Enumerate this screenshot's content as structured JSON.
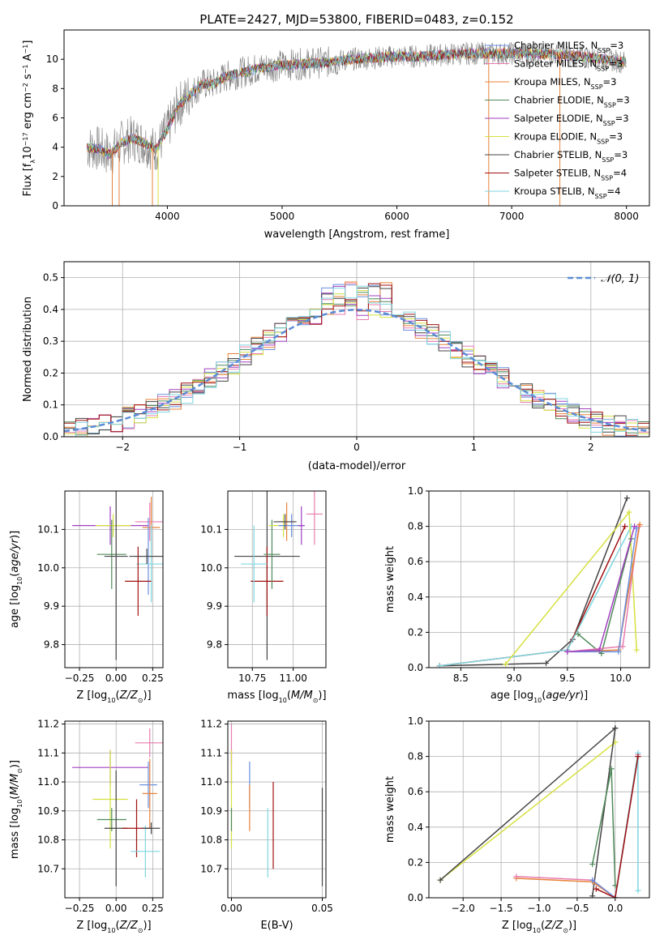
{
  "figure_title": "PLATE=2427, MJD=53800, FIBERID=0483, z=0.152",
  "colors": {
    "chabrier_miles": "#6a8fe0",
    "salpeter_miles": "#e87cb0",
    "kroupa_miles": "#e8823a",
    "chabrier_elodie": "#4f8a5a",
    "salpeter_elodie": "#a040c0",
    "kroupa_elodie": "#d6e040",
    "chabrier_stelib": "#444444",
    "salpeter_stelib": "#a01010",
    "kroupa_stelib": "#7fd6e0",
    "data_gray": "#808080",
    "normal_curve": "#5b8bd6",
    "grid": "#b0b0b0"
  },
  "chart_data": [
    {
      "id": "spectrum",
      "type": "line",
      "xlabel": "wavelength [Angstrom, rest frame]",
      "ylabel": "Flux [f_λ10^-17 erg cm^-2 s^-1 A^-1]",
      "xlim": [
        3100,
        8200
      ],
      "ylim": [
        0,
        12
      ],
      "xticks": [
        4000,
        5000,
        6000,
        7000,
        8000
      ],
      "yticks": [
        0,
        2,
        4,
        6,
        8,
        10
      ],
      "grid": false,
      "legend_position": "upper-right",
      "legend": [
        {
          "label": "Chabrier MILES, N",
          "sub": "SSP",
          "eq": "=3",
          "color_key": "chabrier_miles"
        },
        {
          "label": "Salpeter MILES, N",
          "sub": "SSP",
          "eq": "=3",
          "color_key": "salpeter_miles"
        },
        {
          "label": "Kroupa MILES, N",
          "sub": "SSP",
          "eq": "=3",
          "color_key": "kroupa_miles"
        },
        {
          "label": "Chabrier ELODIE, N",
          "sub": "SSP",
          "eq": "=3",
          "color_key": "chabrier_elodie"
        },
        {
          "label": "Salpeter ELODIE, N",
          "sub": "SSP",
          "eq": "=3",
          "color_key": "salpeter_elodie"
        },
        {
          "label": "Kroupa ELODIE, N",
          "sub": "SSP",
          "eq": "=3",
          "color_key": "kroupa_elodie"
        },
        {
          "label": "Chabrier STELIB, N",
          "sub": "SSP",
          "eq": "=3",
          "color_key": "chabrier_stelib"
        },
        {
          "label": "Salpeter STELIB, N",
          "sub": "SSP",
          "eq": "=4",
          "color_key": "salpeter_stelib"
        },
        {
          "label": "Kroupa STELIB, N",
          "sub": "SSP",
          "eq": "=4",
          "color_key": "kroupa_stelib"
        }
      ],
      "continuum": {
        "x": [
          3300,
          3400,
          3500,
          3600,
          3700,
          3800,
          3900,
          4000,
          4100,
          4200,
          4300,
          4400,
          4500,
          4600,
          4800,
          5000,
          5200,
          5400,
          5600,
          5800,
          6000,
          6200,
          6400,
          6600,
          6800,
          7000,
          7200,
          7400,
          7600,
          7800,
          8000
        ],
        "y": [
          4.0,
          3.9,
          3.5,
          4.3,
          4.6,
          4.3,
          3.8,
          5.2,
          6.9,
          7.6,
          8.3,
          8.3,
          8.8,
          9.0,
          9.4,
          9.6,
          9.7,
          9.8,
          10.0,
          10.1,
          10.2,
          10.2,
          10.3,
          10.4,
          10.4,
          10.4,
          10.4,
          10.3,
          10.2,
          10.0,
          9.8
        ]
      }
    },
    {
      "id": "residuals",
      "type": "histogram",
      "xlabel": "(data-model)/error",
      "ylabel": "Normed distribution",
      "xlim": [
        -2.5,
        2.5
      ],
      "ylim": [
        0,
        0.55
      ],
      "xticks": [
        -2,
        -1,
        0,
        1,
        2
      ],
      "yticks": [
        0.0,
        0.1,
        0.2,
        0.3,
        0.4,
        0.5
      ],
      "grid": true,
      "legend_position": "upper-right",
      "normal_label": "𝒩(0, 1)",
      "bin_width": 0.1
    },
    {
      "id": "age_vs_Z",
      "type": "errorbar",
      "xlabel": "Z [log10(Z/Z⊙)]",
      "ylabel": "age [log10(age/yr)]",
      "xlim": [
        -0.35,
        0.32
      ],
      "ylim": [
        9.74,
        10.2
      ],
      "xticks": [
        -0.25,
        0.0,
        0.25
      ],
      "yticks": [
        9.8,
        9.9,
        10.0,
        10.1
      ],
      "grid": true,
      "points": [
        {
          "x": -0.04,
          "y": 10.11,
          "xerr": 0.26,
          "yerr": 0.05,
          "color_key": "salpeter_elodie"
        },
        {
          "x": -0.02,
          "y": 10.11,
          "xerr": 0.12,
          "yerr": 0.03,
          "color_key": "kroupa_elodie"
        },
        {
          "x": -0.03,
          "y": 10.035,
          "xerr": 0.1,
          "yerr": 0.09,
          "color_key": "chabrier_elodie"
        },
        {
          "x": 0.0,
          "y": 10.03,
          "xerr": 0.08,
          "yerr": 0.27,
          "color_key": "chabrier_stelib"
        },
        {
          "x": 0.23,
          "y": 10.12,
          "xerr": 0.1,
          "yerr": 0.05,
          "color_key": "salpeter_miles"
        },
        {
          "x": 0.24,
          "y": 10.105,
          "xerr": 0.06,
          "yerr": 0.08,
          "color_key": "kroupa_miles"
        },
        {
          "x": 0.22,
          "y": 10.03,
          "xerr": 0.1,
          "yerr": 0.1,
          "color_key": "chabrier_miles"
        },
        {
          "x": 0.24,
          "y": 10.01,
          "xerr": 0.1,
          "yerr": 0.1,
          "color_key": "kroupa_stelib"
        },
        {
          "x": 0.15,
          "y": 9.965,
          "xerr": 0.09,
          "yerr": 0.09,
          "color_key": "salpeter_stelib"
        },
        {
          "x": 0.21,
          "y": 10.03,
          "xerr": 0.12,
          "yerr": 0.02,
          "color_key": "chabrier_stelib"
        }
      ]
    },
    {
      "id": "age_vs_mass",
      "type": "errorbar",
      "xlabel": "mass [log10(M/M⊙)]",
      "ylabel": "",
      "xlim": [
        10.6,
        11.2
      ],
      "ylim": [
        9.74,
        10.2
      ],
      "xticks": [
        10.75,
        11.0
      ],
      "yticks": [
        9.8,
        9.9,
        10.0,
        10.1
      ],
      "grid": true,
      "points": [
        {
          "x": 10.84,
          "y": 10.03,
          "xerr": 0.2,
          "yerr": 0.27,
          "color_key": "chabrier_stelib"
        },
        {
          "x": 10.84,
          "y": 9.965,
          "xerr": 0.1,
          "yerr": 0.09,
          "color_key": "salpeter_stelib"
        },
        {
          "x": 10.76,
          "y": 10.01,
          "xerr": 0.08,
          "yerr": 0.1,
          "color_key": "kroupa_stelib"
        },
        {
          "x": 10.87,
          "y": 10.035,
          "xerr": 0.05,
          "yerr": 0.09,
          "color_key": "chabrier_elodie"
        },
        {
          "x": 10.94,
          "y": 10.11,
          "xerr": 0.09,
          "yerr": 0.03,
          "color_key": "kroupa_elodie"
        },
        {
          "x": 10.96,
          "y": 10.12,
          "xerr": 0.05,
          "yerr": 0.05,
          "color_key": "kroupa_miles"
        },
        {
          "x": 10.99,
          "y": 10.11,
          "xerr": 0.08,
          "yerr": 0.03,
          "color_key": "chabrier_miles"
        },
        {
          "x": 11.05,
          "y": 10.11,
          "xerr": 0.02,
          "yerr": 0.05,
          "color_key": "salpeter_elodie"
        },
        {
          "x": 11.13,
          "y": 10.14,
          "xerr": 0.05,
          "yerr": 0.08,
          "color_key": "salpeter_miles"
        },
        {
          "x": 10.95,
          "y": 10.12,
          "xerr": 0.07,
          "yerr": 0.02,
          "color_key": "chabrier_stelib"
        }
      ]
    },
    {
      "id": "weight_vs_age",
      "type": "line",
      "xlabel": "age [log10(age/yr)]",
      "ylabel": "mass weight",
      "xlim": [
        8.2,
        10.27
      ],
      "ylim": [
        0,
        1
      ],
      "xticks": [
        8.5,
        9.0,
        9.5,
        10.0
      ],
      "yticks": [
        0.0,
        0.2,
        0.4,
        0.6,
        0.8,
        1.0
      ],
      "grid": true,
      "series": [
        {
          "color_key": "chabrier_stelib",
          "x": [
            8.3,
            9.3,
            9.55,
            10.06
          ],
          "y": [
            0.01,
            0.025,
            0.16,
            0.96
          ]
        },
        {
          "color_key": "salpeter_stelib",
          "x": [
            8.3,
            9.5,
            10.04
          ],
          "y": [
            0.01,
            0.1,
            0.8
          ]
        },
        {
          "color_key": "kroupa_stelib",
          "x": [
            8.3,
            9.5,
            10.1
          ],
          "y": [
            0.01,
            0.1,
            0.8
          ]
        },
        {
          "color_key": "kroupa_elodie",
          "x": [
            8.92,
            10.08,
            10.15
          ],
          "y": [
            0.02,
            0.88,
            0.1
          ]
        },
        {
          "color_key": "chabrier_elodie",
          "x": [
            9.6,
            9.82,
            10.1
          ],
          "y": [
            0.19,
            0.08,
            0.73
          ]
        },
        {
          "color_key": "salpeter_miles",
          "x": [
            9.5,
            10.02,
            10.17
          ],
          "y": [
            0.09,
            0.12,
            0.8
          ]
        },
        {
          "color_key": "kroupa_miles",
          "x": [
            9.5,
            9.98,
            10.18
          ],
          "y": [
            0.09,
            0.1,
            0.81
          ]
        },
        {
          "color_key": "chabrier_miles",
          "x": [
            9.5,
            9.98,
            10.15
          ],
          "y": [
            0.09,
            0.09,
            0.79
          ]
        },
        {
          "color_key": "salpeter_elodie",
          "x": [
            9.5,
            9.8,
            10.13
          ],
          "y": [
            0.09,
            0.1,
            0.8
          ]
        }
      ]
    },
    {
      "id": "mass_vs_Z",
      "type": "errorbar",
      "xlabel": "Z [log10(Z/Z⊙)]",
      "ylabel": "mass [log10(M/M⊙)]",
      "xlim": [
        -0.35,
        0.32
      ],
      "ylim": [
        10.6,
        11.21
      ],
      "xticks": [
        -0.25,
        0.0,
        0.25
      ],
      "yticks": [
        10.7,
        10.8,
        10.9,
        11.0,
        11.1,
        11.2
      ],
      "grid": true,
      "points": [
        {
          "x": -0.04,
          "y": 11.05,
          "xerr": 0.26,
          "yerr": 0.06,
          "color_key": "salpeter_elodie"
        },
        {
          "x": -0.04,
          "y": 10.94,
          "xerr": 0.12,
          "yerr": 0.17,
          "color_key": "kroupa_elodie"
        },
        {
          "x": -0.03,
          "y": 10.87,
          "xerr": 0.1,
          "yerr": 0.04,
          "color_key": "chabrier_elodie"
        },
        {
          "x": 0.0,
          "y": 10.84,
          "xerr": 0.08,
          "yerr": 0.2,
          "color_key": "chabrier_stelib"
        },
        {
          "x": 0.23,
          "y": 11.135,
          "xerr": 0.1,
          "yerr": 0.05,
          "color_key": "salpeter_miles"
        },
        {
          "x": 0.22,
          "y": 10.99,
          "xerr": 0.06,
          "yerr": 0.08,
          "color_key": "chabrier_miles"
        },
        {
          "x": 0.23,
          "y": 10.96,
          "xerr": 0.05,
          "yerr": 0.12,
          "color_key": "kroupa_miles"
        },
        {
          "x": 0.14,
          "y": 10.84,
          "xerr": 0.1,
          "yerr": 0.1,
          "color_key": "salpeter_stelib"
        },
        {
          "x": 0.2,
          "y": 10.76,
          "xerr": 0.1,
          "yerr": 0.09,
          "color_key": "kroupa_stelib"
        },
        {
          "x": 0.24,
          "y": 10.84,
          "xerr": 0.06,
          "yerr": 0.02,
          "color_key": "chabrier_stelib"
        }
      ]
    },
    {
      "id": "mass_vs_ebv",
      "type": "errorbar",
      "xlabel": "E(B-V)",
      "ylabel": "",
      "xlim": [
        -0.002,
        0.052
      ],
      "ylim": [
        10.6,
        11.21
      ],
      "xticks": [
        0.0,
        0.05
      ],
      "yticks": [
        10.7,
        10.8,
        10.9,
        11.0,
        11.1,
        11.2
      ],
      "grid": true,
      "points": [
        {
          "x": 0.0,
          "y": 11.13,
          "xerr": 0.0,
          "yerr": 0.07,
          "color_key": "salpeter_miles"
        },
        {
          "x": 0.0,
          "y": 11.05,
          "xerr": 0.0,
          "yerr": 0.06,
          "color_key": "salpeter_elodie"
        },
        {
          "x": 0.0,
          "y": 10.94,
          "xerr": 0.0,
          "yerr": 0.17,
          "color_key": "kroupa_elodie"
        },
        {
          "x": 0.0,
          "y": 10.87,
          "xerr": 0.0,
          "yerr": 0.04,
          "color_key": "chabrier_elodie"
        },
        {
          "x": 0.01,
          "y": 10.99,
          "xerr": 0.0,
          "yerr": 0.08,
          "color_key": "chabrier_miles"
        },
        {
          "x": 0.01,
          "y": 10.91,
          "xerr": 0.0,
          "yerr": 0.08,
          "color_key": "kroupa_miles"
        },
        {
          "x": 0.02,
          "y": 10.79,
          "xerr": 0.0,
          "yerr": 0.12,
          "color_key": "kroupa_stelib"
        },
        {
          "x": 0.023,
          "y": 10.85,
          "xerr": 0.0,
          "yerr": 0.15,
          "color_key": "salpeter_stelib"
        },
        {
          "x": 0.05,
          "y": 10.81,
          "xerr": 0.0,
          "yerr": 0.17,
          "color_key": "chabrier_stelib"
        }
      ]
    },
    {
      "id": "weight_vs_Z",
      "type": "line",
      "xlabel": "Z [log10(Z/Z⊙)]",
      "ylabel": "mass weight",
      "xlim": [
        -2.45,
        0.45
      ],
      "ylim": [
        0,
        1
      ],
      "xticks": [
        -2.0,
        -1.5,
        -1.0,
        -0.5,
        0.0
      ],
      "yticks": [
        0.0,
        0.2,
        0.4,
        0.6,
        0.8,
        1.0
      ],
      "grid": true,
      "series": [
        {
          "color_key": "kroupa_elodie",
          "x": [
            -2.3,
            0.0
          ],
          "y": [
            0.1,
            0.88
          ]
        },
        {
          "color_key": "chabrier_stelib",
          "x": [
            -2.3,
            0.0,
            -0.3,
            0.0
          ],
          "y": [
            0.1,
            0.96,
            0.01,
            0.96
          ]
        },
        {
          "color_key": "kroupa_miles",
          "x": [
            -1.3,
            -0.3,
            0.0,
            0.3
          ],
          "y": [
            0.11,
            0.09,
            0.0,
            0.8
          ]
        },
        {
          "color_key": "salpeter_miles",
          "x": [
            -1.3,
            -0.3,
            0.0,
            0.3
          ],
          "y": [
            0.12,
            0.1,
            0.0,
            0.81
          ]
        },
        {
          "color_key": "chabrier_miles",
          "x": [
            -0.3,
            0.0,
            0.3
          ],
          "y": [
            0.1,
            0.0,
            0.8
          ]
        },
        {
          "color_key": "chabrier_elodie",
          "x": [
            -0.3,
            -0.05,
            0.0
          ],
          "y": [
            0.19,
            0.73,
            0.07
          ]
        },
        {
          "color_key": "kroupa_stelib",
          "x": [
            0.0,
            0.3,
            0.3
          ],
          "y": [
            0.0,
            0.82,
            0.04
          ]
        },
        {
          "color_key": "salpeter_stelib",
          "x": [
            -0.25,
            0.0,
            0.3
          ],
          "y": [
            0.05,
            0.0,
            0.8
          ]
        }
      ]
    }
  ]
}
